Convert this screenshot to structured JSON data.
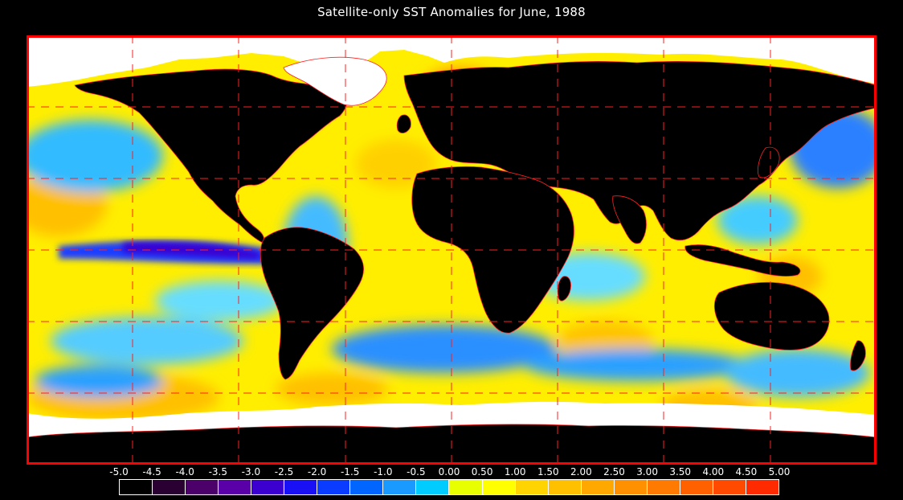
{
  "title": "Satellite-only SST Anomalies for June, 1988",
  "legend": {
    "labels": [
      "-5.0",
      "-4.5",
      "-4.0",
      "-3.5",
      "-3.0",
      "-2.5",
      "-2.0",
      "-1.5",
      "-1.0",
      "-0.5",
      "0.00",
      "0.50",
      "1.00",
      "1.50",
      "2.00",
      "2.50",
      "3.00",
      "3.50",
      "4.00",
      "4.50",
      "5.00"
    ],
    "colors": [
      "#000000",
      "#2a0033",
      "#4b006a",
      "#5a00a8",
      "#3b00d0",
      "#1a10f5",
      "#0a3cff",
      "#0066ff",
      "#1a9aff",
      "#00ccff",
      "#e8ff00",
      "#ffff00",
      "#ffd400",
      "#ffc000",
      "#ffa800",
      "#ff9000",
      "#ff7a00",
      "#ff6000",
      "#ff4a00",
      "#ff2a00"
    ]
  },
  "map": {
    "border_color": "#ff0000",
    "land_color": "#000000",
    "ice_color": "#ffffff",
    "ocean_base_color": "#ffee00",
    "grid_style": "dashed-red"
  }
}
